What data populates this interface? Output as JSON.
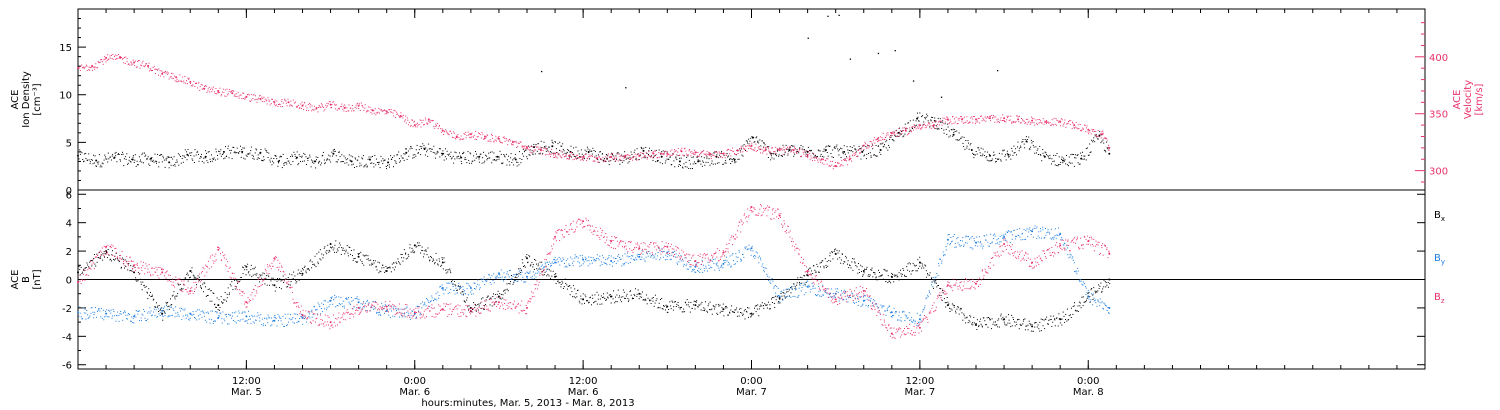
{
  "colors": {
    "axis": "#000000",
    "density": "#000000",
    "velocity": "#e8336b",
    "bx": "#000000",
    "by": "#1f7fe0",
    "bz": "#e8336b"
  },
  "chart_data": [
    {
      "type": "scatter",
      "panel": "top",
      "ylabel_lines": [
        "ACE",
        "Ion Density",
        "[cm⁻³]"
      ],
      "y2label_lines": [
        "ACE",
        "Velocity",
        "[km/s]"
      ],
      "ylim": [
        0,
        19
      ],
      "y2lim": [
        283,
        442
      ],
      "yticks": [
        0,
        5,
        10,
        15
      ],
      "y2ticks": [
        300,
        350,
        400
      ],
      "xlim_hours": [
        0,
        96
      ],
      "data_end_hour": 73.5,
      "series": [
        {
          "name": "",
          "axis": "left",
          "color": "#000000",
          "points": [
            [
              0.0,
              3.6
            ],
            [
              1.3,
              3.1
            ],
            [
              2.6,
              3.4
            ],
            [
              3.9,
              3.2
            ],
            [
              5.2,
              3.3
            ],
            [
              6.5,
              2.9
            ],
            [
              7.8,
              3.7
            ],
            [
              9.1,
              3.5
            ],
            [
              10.4,
              4.0
            ],
            [
              11.7,
              4.0
            ],
            [
              13.0,
              3.9
            ],
            [
              14.3,
              3.0
            ],
            [
              15.6,
              3.4
            ],
            [
              16.9,
              3.0
            ],
            [
              18.2,
              3.8
            ],
            [
              19.5,
              3.0
            ],
            [
              20.8,
              3.2
            ],
            [
              22.1,
              2.9
            ],
            [
              23.4,
              3.9
            ],
            [
              24.7,
              4.3
            ],
            [
              26.0,
              3.8
            ],
            [
              27.3,
              3.4
            ],
            [
              28.6,
              3.5
            ],
            [
              29.9,
              3.5
            ],
            [
              31.2,
              3.2
            ],
            [
              32.5,
              4.5
            ],
            [
              33.8,
              4.6
            ],
            [
              35.1,
              4.0
            ],
            [
              36.4,
              4.0
            ],
            [
              37.7,
              3.3
            ],
            [
              39.0,
              3.5
            ],
            [
              40.3,
              4.1
            ],
            [
              41.6,
              3.5
            ],
            [
              42.9,
              3.0
            ],
            [
              44.2,
              3.0
            ],
            [
              45.5,
              3.5
            ],
            [
              46.8,
              3.2
            ],
            [
              48.1,
              5.5
            ],
            [
              49.4,
              3.8
            ],
            [
              50.7,
              4.2
            ],
            [
              52.0,
              4.0
            ],
            [
              53.3,
              4.2
            ],
            [
              54.6,
              4.0
            ],
            [
              55.9,
              4.0
            ],
            [
              57.2,
              4.2
            ],
            [
              58.5,
              6.0
            ],
            [
              59.8,
              7.5
            ],
            [
              61.1,
              7.2
            ],
            [
              62.4,
              5.8
            ],
            [
              63.7,
              4.2
            ],
            [
              65.0,
              3.6
            ],
            [
              66.3,
              3.7
            ],
            [
              67.6,
              5.1
            ],
            [
              68.9,
              3.5
            ],
            [
              70.2,
              3.1
            ],
            [
              71.5,
              3.3
            ],
            [
              72.8,
              5.7
            ],
            [
              73.5,
              3.8
            ]
          ]
        },
        {
          "name": "",
          "axis": "right",
          "color": "#e8336b",
          "points": [
            [
              0.0,
              390
            ],
            [
              1.0,
              392
            ],
            [
              2.0,
              399
            ],
            [
              3.0,
              399
            ],
            [
              4.0,
              395
            ],
            [
              5.0,
              392
            ],
            [
              6.0,
              385
            ],
            [
              7.0,
              382
            ],
            [
              8.0,
              378
            ],
            [
              9.0,
              372
            ],
            [
              10.0,
              370
            ],
            [
              11.0,
              368
            ],
            [
              12.0,
              365
            ],
            [
              13.0,
              363
            ],
            [
              14.0,
              360
            ],
            [
              15.0,
              360
            ],
            [
              16.0,
              357
            ],
            [
              17.0,
              355
            ],
            [
              18.0,
              358
            ],
            [
              19.0,
              355
            ],
            [
              20.0,
              357
            ],
            [
              21.0,
              353
            ],
            [
              22.0,
              352
            ],
            [
              23.0,
              348
            ],
            [
              24.0,
              340
            ],
            [
              25.0,
              345
            ],
            [
              26.0,
              335
            ],
            [
              27.0,
              330
            ],
            [
              28.0,
              332
            ],
            [
              29.0,
              330
            ],
            [
              30.0,
              328
            ],
            [
              31.0,
              325
            ],
            [
              32.0,
              320
            ],
            [
              33.0,
              318
            ],
            [
              34.0,
              315
            ],
            [
              35.0,
              313
            ],
            [
              36.0,
              312
            ],
            [
              37.0,
              311
            ],
            [
              38.0,
              312
            ],
            [
              39.0,
              313
            ],
            [
              40.0,
              313
            ],
            [
              41.0,
              315
            ],
            [
              42.0,
              315
            ],
            [
              43.0,
              317
            ],
            [
              44.0,
              316
            ],
            [
              45.0,
              314
            ],
            [
              46.0,
              315
            ],
            [
              47.0,
              318
            ],
            [
              48.0,
              322
            ],
            [
              49.0,
              318
            ],
            [
              50.0,
              318
            ],
            [
              51.0,
              318
            ],
            [
              52.0,
              314
            ],
            [
              53.0,
              310
            ],
            [
              54.0,
              304
            ],
            [
              55.0,
              310
            ],
            [
              56.0,
              322
            ],
            [
              57.0,
              328
            ],
            [
              58.0,
              333
            ],
            [
              59.0,
              335
            ],
            [
              60.0,
              340
            ],
            [
              61.0,
              340
            ],
            [
              62.0,
              345
            ],
            [
              63.0,
              345
            ],
            [
              64.0,
              345
            ],
            [
              65.0,
              346
            ],
            [
              66.0,
              346
            ],
            [
              67.0,
              345
            ],
            [
              68.0,
              344
            ],
            [
              69.0,
              343
            ],
            [
              70.0,
              343
            ],
            [
              71.0,
              340
            ],
            [
              72.0,
              336
            ],
            [
              73.0,
              332
            ],
            [
              73.5,
              320
            ]
          ]
        }
      ]
    },
    {
      "type": "scatter",
      "panel": "bottom",
      "ylabel_lines": [
        "ACE",
        "B",
        "[nT]"
      ],
      "ylim": [
        -6.3,
        6.3
      ],
      "yticks": [
        -6,
        -4,
        -2,
        0,
        2,
        4,
        6
      ],
      "xlim_hours": [
        0,
        96
      ],
      "legend": [
        "Bx",
        "By",
        "Bz"
      ],
      "series": [
        {
          "name": "Bx",
          "color": "#000000",
          "points": [
            [
              0.0,
              0.5
            ],
            [
              2.0,
              2.0
            ],
            [
              4.0,
              0.5
            ],
            [
              6.0,
              -2.4
            ],
            [
              8.0,
              0.6
            ],
            [
              10.0,
              -1.8
            ],
            [
              12.0,
              0.9
            ],
            [
              14.0,
              -0.4
            ],
            [
              16.0,
              0.4
            ],
            [
              18.0,
              2.5
            ],
            [
              20.0,
              1.6
            ],
            [
              22.0,
              0.6
            ],
            [
              24.0,
              2.4
            ],
            [
              26.0,
              1.2
            ],
            [
              28.0,
              -2.0
            ],
            [
              30.0,
              -1.2
            ],
            [
              32.0,
              1.5
            ],
            [
              34.0,
              0.2
            ],
            [
              36.0,
              -1.4
            ],
            [
              38.0,
              -1.2
            ],
            [
              40.0,
              -1.0
            ],
            [
              42.0,
              -1.9
            ],
            [
              44.0,
              -1.8
            ],
            [
              46.0,
              -2.1
            ],
            [
              48.0,
              -2.4
            ],
            [
              50.0,
              -1.3
            ],
            [
              52.0,
              0.3
            ],
            [
              54.0,
              1.8
            ],
            [
              56.0,
              0.6
            ],
            [
              58.0,
              0.2
            ],
            [
              60.0,
              1.2
            ],
            [
              62.0,
              -1.8
            ],
            [
              64.0,
              -3.2
            ],
            [
              66.0,
              -2.8
            ],
            [
              68.0,
              -3.3
            ],
            [
              70.0,
              -2.8
            ],
            [
              72.0,
              -1.2
            ],
            [
              73.5,
              0.0
            ]
          ]
        },
        {
          "name": "By",
          "color": "#1f7fe0",
          "points": [
            [
              0.0,
              -2.3
            ],
            [
              2.0,
              -2.4
            ],
            [
              4.0,
              -2.6
            ],
            [
              6.0,
              -2.2
            ],
            [
              8.0,
              -2.4
            ],
            [
              10.0,
              -2.7
            ],
            [
              12.0,
              -2.6
            ],
            [
              14.0,
              -2.9
            ],
            [
              16.0,
              -2.7
            ],
            [
              18.0,
              -1.5
            ],
            [
              20.0,
              -1.6
            ],
            [
              22.0,
              -2.2
            ],
            [
              24.0,
              -2.4
            ],
            [
              26.0,
              -0.6
            ],
            [
              28.0,
              -0.6
            ],
            [
              30.0,
              0.4
            ],
            [
              32.0,
              0.2
            ],
            [
              34.0,
              1.2
            ],
            [
              36.0,
              1.4
            ],
            [
              38.0,
              1.3
            ],
            [
              40.0,
              1.6
            ],
            [
              42.0,
              1.9
            ],
            [
              44.0,
              0.9
            ],
            [
              46.0,
              1.1
            ],
            [
              48.0,
              2.2
            ],
            [
              50.0,
              -1.2
            ],
            [
              52.0,
              -0.5
            ],
            [
              54.0,
              -1.0
            ],
            [
              56.0,
              -1.5
            ],
            [
              58.0,
              -2.3
            ],
            [
              60.0,
              -2.8
            ],
            [
              62.0,
              2.8
            ],
            [
              64.0,
              2.6
            ],
            [
              66.0,
              3.0
            ],
            [
              68.0,
              3.4
            ],
            [
              70.0,
              3.2
            ],
            [
              72.0,
              -1.2
            ],
            [
              73.5,
              -2.0
            ]
          ]
        },
        {
          "name": "Bz",
          "color": "#e8336b",
          "points": [
            [
              0.0,
              -0.2
            ],
            [
              2.0,
              2.3
            ],
            [
              4.0,
              1.0
            ],
            [
              6.0,
              0.5
            ],
            [
              8.0,
              -0.8
            ],
            [
              10.0,
              2.1
            ],
            [
              12.0,
              -1.6
            ],
            [
              14.0,
              1.5
            ],
            [
              16.0,
              -2.5
            ],
            [
              18.0,
              -3.0
            ],
            [
              20.0,
              -2.0
            ],
            [
              22.0,
              -1.9
            ],
            [
              24.0,
              -2.3
            ],
            [
              26.0,
              -2.1
            ],
            [
              28.0,
              -2.2
            ],
            [
              30.0,
              -1.6
            ],
            [
              32.0,
              -2.0
            ],
            [
              34.0,
              3.0
            ],
            [
              36.0,
              4.1
            ],
            [
              38.0,
              2.7
            ],
            [
              40.0,
              2.2
            ],
            [
              42.0,
              2.3
            ],
            [
              44.0,
              1.3
            ],
            [
              46.0,
              1.9
            ],
            [
              48.0,
              5.1
            ],
            [
              50.0,
              4.5
            ],
            [
              52.0,
              0.6
            ],
            [
              54.0,
              -1.4
            ],
            [
              56.0,
              -0.8
            ],
            [
              58.0,
              -3.8
            ],
            [
              60.0,
              -3.4
            ],
            [
              62.0,
              -0.4
            ],
            [
              64.0,
              -0.3
            ],
            [
              66.0,
              2.5
            ],
            [
              68.0,
              1.2
            ],
            [
              70.0,
              2.4
            ],
            [
              72.0,
              2.7
            ],
            [
              73.5,
              1.8
            ]
          ]
        }
      ]
    }
  ],
  "x_axis": {
    "ticks": [
      {
        "hour": 12,
        "line1": "12:00",
        "line2": "Mar. 5"
      },
      {
        "hour": 24,
        "line1": "0:00",
        "line2": "Mar. 6"
      },
      {
        "hour": 36,
        "line1": "12:00",
        "line2": "Mar. 6"
      },
      {
        "hour": 48,
        "line1": "0:00",
        "line2": "Mar. 7"
      },
      {
        "hour": 60,
        "line1": "12:00",
        "line2": "Mar. 7"
      },
      {
        "hour": 72,
        "line1": "0:00",
        "line2": "Mar. 8"
      }
    ],
    "xlabel": "hours:minutes, Mar. 5, 2013 - Mar. 8, 2013"
  }
}
